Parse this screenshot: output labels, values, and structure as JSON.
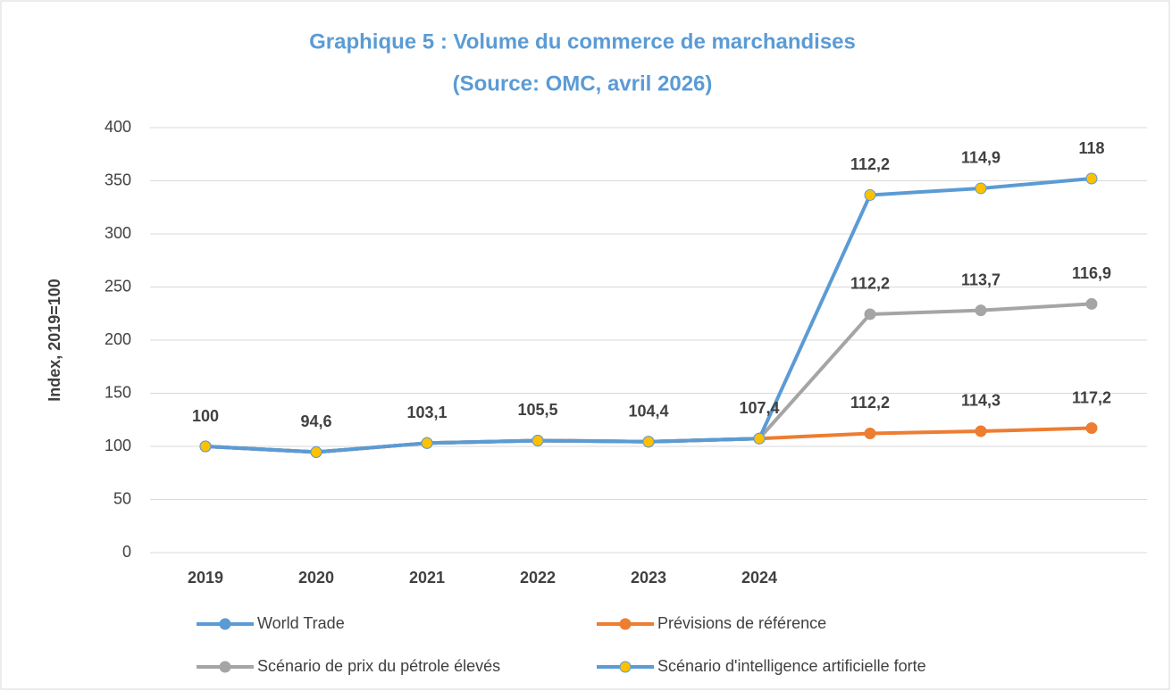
{
  "chart_data": {
    "type": "line",
    "stacked": true,
    "title": [
      "Graphique 5 :  Volume du commerce de marchandises",
      "(Source: OMC, avril 2026)"
    ],
    "y_label": "Index, 2019=100",
    "categories": [
      "2019",
      "2020",
      "2021",
      "2022",
      "2023",
      "2024",
      null,
      null,
      null
    ],
    "ylim": [
      0,
      400
    ],
    "yticks": [
      0,
      50,
      100,
      150,
      200,
      250,
      300,
      350,
      400
    ],
    "grid": true,
    "legend": "bottom",
    "series": [
      {
        "name": "World Trade",
        "color": "#5b9bd5",
        "marker": "#5b9bd5",
        "values": [
          100,
          94.6,
          103.1,
          105.5,
          104.4,
          107.4,
          null,
          null,
          null
        ],
        "value_labels": [
          "100",
          "94,6",
          "103,1",
          "105,5",
          "104,4",
          "107,4",
          null,
          null,
          null
        ]
      },
      {
        "name": "Prévisions de référence",
        "color": "#ed7d31",
        "marker": "#ed7d31",
        "values": [
          0,
          0,
          0,
          0,
          0,
          0,
          112.2,
          114.3,
          117.2
        ],
        "value_labels": [
          null,
          null,
          null,
          null,
          null,
          null,
          "112,2",
          "114,3",
          "117,2"
        ]
      },
      {
        "name": "Scénario de prix du pétrole élevés",
        "color": "#a5a5a5",
        "marker": "#a5a5a5",
        "values": [
          0,
          0,
          0,
          0,
          0,
          0,
          112.2,
          113.7,
          116.9
        ],
        "value_labels": [
          null,
          null,
          null,
          null,
          null,
          null,
          "112,2",
          "113,7",
          "116,9"
        ]
      },
      {
        "name": "Scénario d'intelligence artificielle forte",
        "color": "#5b9bd5",
        "marker": "#ffc000",
        "values": [
          0,
          0,
          0,
          0,
          0,
          0,
          112.2,
          114.9,
          118
        ],
        "value_labels": [
          null,
          null,
          null,
          null,
          null,
          null,
          "112,2",
          "114,9",
          "118"
        ]
      }
    ]
  }
}
